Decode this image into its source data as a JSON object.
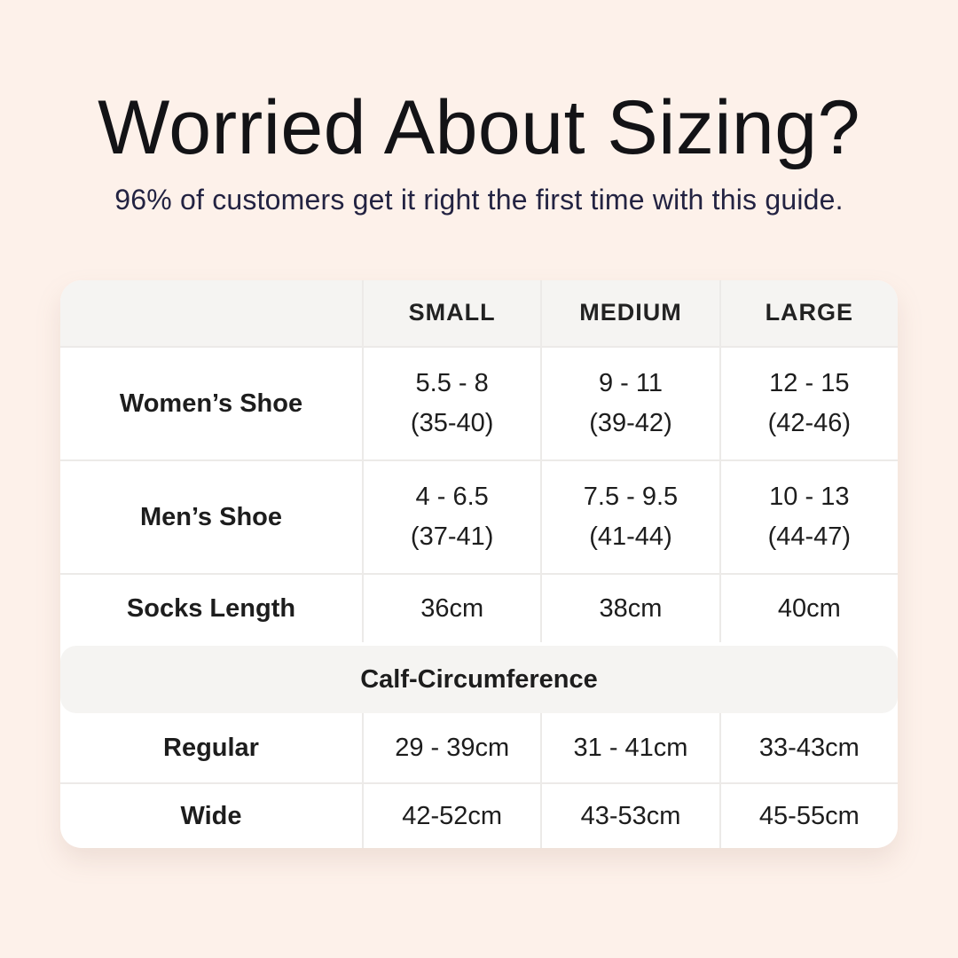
{
  "page": {
    "title": "Worried About Sizing?",
    "subtitle": "96% of customers get it right the first time with this guide."
  },
  "colors": {
    "background": "#FDF1EA",
    "table_background": "#FFFFFF",
    "header_band": "#F5F4F2",
    "divider": "#ECEAE8",
    "title_text": "#131316",
    "subtitle_text": "#232342",
    "table_text": "#1D1D1D"
  },
  "table": {
    "columns": [
      "",
      "SMALL",
      "MEDIUM",
      "LARGE"
    ],
    "rows": [
      {
        "label": "Women’s Shoe",
        "cells": [
          {
            "main": "5.5 - 8",
            "sub": "(35-40)"
          },
          {
            "main": "9 - 11",
            "sub": "(39-42)"
          },
          {
            "main": "12 - 15",
            "sub": "(42-46)"
          }
        ]
      },
      {
        "label": "Men’s Shoe",
        "cells": [
          {
            "main": "4 - 6.5",
            "sub": "(37-41)"
          },
          {
            "main": "7.5 - 9.5",
            "sub": "(41-44)"
          },
          {
            "main": "10 - 13",
            "sub": "(44-47)"
          }
        ]
      },
      {
        "label": "Socks Length",
        "cells": [
          {
            "main": "36cm",
            "sub": ""
          },
          {
            "main": "38cm",
            "sub": ""
          },
          {
            "main": "40cm",
            "sub": ""
          }
        ]
      }
    ],
    "section_header": "Calf-Circumference",
    "section_rows": [
      {
        "label": "Regular",
        "cells": [
          {
            "main": "29 - 39cm",
            "sub": ""
          },
          {
            "main": "31 - 41cm",
            "sub": ""
          },
          {
            "main": "33-43cm",
            "sub": ""
          }
        ]
      },
      {
        "label": "Wide",
        "cells": [
          {
            "main": "42-52cm",
            "sub": ""
          },
          {
            "main": "43-53cm",
            "sub": ""
          },
          {
            "main": "45-55cm",
            "sub": ""
          }
        ]
      }
    ]
  }
}
